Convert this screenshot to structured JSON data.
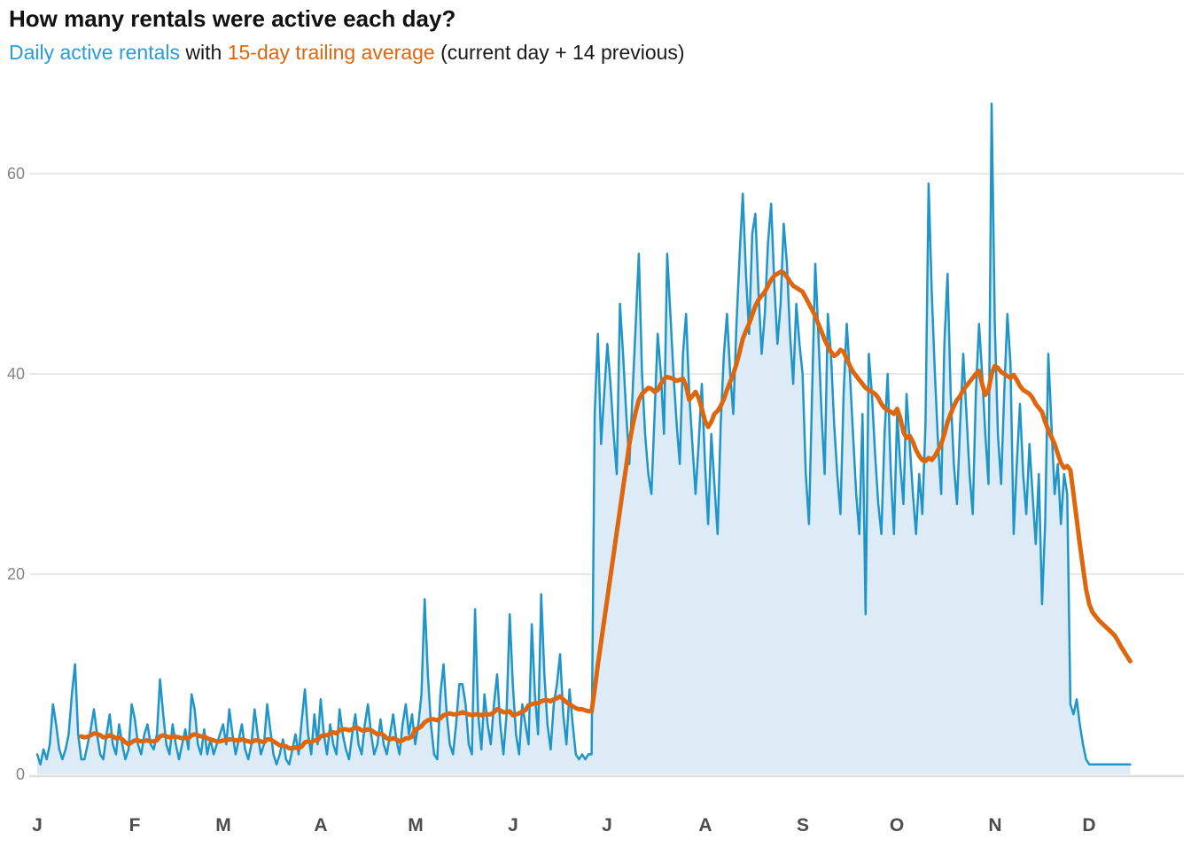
{
  "header": {
    "title": "How many rentals were active each day?",
    "subtitle_part1": "Daily active rentals",
    "subtitle_part2": " with ",
    "subtitle_part3": "15-day trailing average",
    "subtitle_part4": " (current day + 14 previous)"
  },
  "colors": {
    "daily_blue": "#1f95c8",
    "subtitle_blue": "#2b9bd7",
    "area_fill": "#dcebf6",
    "avg_orange": "#dd660e",
    "grid": "#e9e9e9",
    "baseline": "#dedede",
    "y_label": "#848484",
    "x_label": "#4d4d4d",
    "title_text": "#111111",
    "body_text": "#1a1a1a"
  },
  "chart_data": {
    "type": "line",
    "title": "How many rentals were active each day?",
    "xlabel": "",
    "ylabel": "",
    "x_unit": "day of year (Jan 1 = day 0, data ends mid-December)",
    "ylim": [
      0,
      70
    ],
    "yticks": [
      0,
      20,
      40,
      60
    ],
    "grid": "horizontal",
    "legend_position": "in subtitle (colored text)",
    "x_tick_labels": [
      "J",
      "F",
      "M",
      "A",
      "M",
      "J",
      "J",
      "A",
      "S",
      "O",
      "N",
      "D"
    ],
    "month_start_day_index": [
      0,
      31,
      59,
      90,
      120,
      151,
      181,
      212,
      243,
      273,
      304,
      334
    ],
    "series": [
      {
        "name": "Daily active rentals",
        "style": "line with area fill",
        "start_day_index": 0,
        "values": [
          2,
          1,
          2.5,
          1.5,
          3,
          7,
          5,
          2.5,
          1.5,
          2.5,
          4,
          8,
          11,
          4,
          1.5,
          1.5,
          3,
          4.5,
          6.5,
          4,
          2,
          1.5,
          4,
          6,
          3,
          2,
          5,
          3,
          1.5,
          2.5,
          7,
          5.5,
          3,
          2,
          4,
          5,
          3,
          2.5,
          4,
          9.5,
          6,
          3,
          2,
          5,
          3,
          1.5,
          3,
          4.5,
          2.5,
          8,
          6.5,
          3,
          2,
          4.5,
          2,
          3.5,
          2,
          3,
          4,
          5,
          3,
          6.5,
          4,
          2,
          3.5,
          5,
          2.5,
          1.5,
          3,
          6.5,
          4,
          2,
          3,
          7,
          4.5,
          2,
          1,
          2,
          3.5,
          1.5,
          1,
          2.5,
          4,
          2,
          5.5,
          8.5,
          4,
          2,
          6,
          3,
          7.5,
          4,
          2,
          5,
          3,
          2,
          6.5,
          4,
          2.5,
          1.5,
          4,
          6,
          3,
          2,
          5,
          7,
          4,
          2,
          3,
          5.5,
          3,
          2,
          4,
          6,
          3.5,
          2,
          5,
          7,
          4,
          6,
          3,
          5,
          8,
          17.5,
          10,
          5,
          2,
          1.5,
          8,
          11,
          6,
          3,
          2,
          5,
          9,
          9,
          7,
          3,
          2,
          16.5,
          6,
          2.5,
          8,
          5,
          3,
          7,
          10,
          5,
          2,
          6,
          16,
          9,
          4,
          2,
          7,
          5,
          3,
          15,
          8,
          4,
          18,
          10,
          5,
          2.5,
          7,
          9,
          12,
          6,
          3,
          8.5,
          5,
          2,
          1.5,
          2,
          1.5,
          2,
          2,
          36,
          44,
          33,
          38,
          43,
          39,
          34,
          30,
          47,
          42,
          36,
          31,
          38,
          45,
          52,
          40,
          34,
          30,
          28,
          36,
          44,
          40,
          34,
          52,
          46,
          40,
          35,
          31,
          42,
          46,
          38,
          33,
          28,
          33,
          39,
          31,
          25,
          34,
          29,
          24,
          35,
          42,
          46,
          40,
          36,
          45,
          52,
          58,
          50,
          44,
          54,
          56,
          48,
          42,
          46,
          53,
          57,
          49,
          43,
          47,
          55,
          51,
          44,
          39,
          47,
          43,
          40,
          30,
          25,
          38,
          51,
          44,
          36,
          30,
          46,
          42,
          35,
          30,
          26,
          38,
          45,
          40,
          34,
          28,
          24,
          36,
          16,
          42,
          38,
          32,
          27,
          24,
          34,
          40,
          30,
          24,
          36,
          31,
          27,
          38,
          33,
          28,
          24,
          30,
          26,
          35,
          59,
          48,
          40,
          33,
          28,
          43,
          50,
          38,
          31,
          27,
          35,
          42,
          36,
          30,
          26,
          38,
          45,
          40,
          34,
          29,
          67,
          45,
          34,
          29,
          38,
          46,
          41,
          24,
          31,
          37,
          30,
          26,
          33,
          28,
          23,
          30,
          17,
          25,
          42,
          35,
          28,
          31,
          25,
          30,
          28,
          7,
          6,
          7.5,
          5,
          3,
          1.5,
          1,
          1,
          1,
          1,
          1,
          1,
          1,
          1,
          1,
          1,
          1,
          1,
          1,
          1
        ]
      },
      {
        "name": "15-day trailing average",
        "style": "thick line",
        "start_day_index": 14,
        "values": [
          3.8,
          3.7,
          3.75,
          3.9,
          4.1,
          4.05,
          3.9,
          3.7,
          3.75,
          3.9,
          3.8,
          3.6,
          3.7,
          3.5,
          3.2,
          3.0,
          3.2,
          3.4,
          3.4,
          3.3,
          3.35,
          3.4,
          3.3,
          3.3,
          3.4,
          3.8,
          3.9,
          3.8,
          3.7,
          3.8,
          3.75,
          3.7,
          3.6,
          3.65,
          3.6,
          3.9,
          4.0,
          3.9,
          3.8,
          3.8,
          3.6,
          3.5,
          3.4,
          3.3,
          3.3,
          3.4,
          3.4,
          3.5,
          3.5,
          3.4,
          3.4,
          3.5,
          3.4,
          3.3,
          3.2,
          3.4,
          3.4,
          3.3,
          3.2,
          3.5,
          3.5,
          3.3,
          3.1,
          2.9,
          2.9,
          2.8,
          2.6,
          2.6,
          2.7,
          2.6,
          2.8,
          3.2,
          3.3,
          3.2,
          3.4,
          3.4,
          3.8,
          3.9,
          3.9,
          4.1,
          4.2,
          4.1,
          4.4,
          4.5,
          4.5,
          4.4,
          4.5,
          4.7,
          4.6,
          4.4,
          4.4,
          4.5,
          4.4,
          4.2,
          4.0,
          4.1,
          3.9,
          3.6,
          3.5,
          3.6,
          3.5,
          3.3,
          3.4,
          3.6,
          3.6,
          3.8,
          4.5,
          4.6,
          4.8,
          5.2,
          5.4,
          5.5,
          5.5,
          5.4,
          5.6,
          5.9,
          6.0,
          6.1,
          6.0,
          6.0,
          6.1,
          6.2,
          6.1,
          6.0,
          5.9,
          6.0,
          6.0,
          5.9,
          6.0,
          6.0,
          6.0,
          6.2,
          6.5,
          6.4,
          6.2,
          6.2,
          6.3,
          5.9,
          6.0,
          6.1,
          6.3,
          6.4,
          6.9,
          7.0,
          7.1,
          7.1,
          7.3,
          7.4,
          7.4,
          7.3,
          7.5,
          7.6,
          7.8,
          7.5,
          7.2,
          7.0,
          6.8,
          6.6,
          6.5,
          6.5,
          6.4,
          6.3,
          6.3,
          8.5,
          11,
          13.2,
          15.4,
          17.6,
          19.8,
          22,
          24.2,
          26.4,
          28.6,
          30.8,
          33,
          34.8,
          36.2,
          37.4,
          38.0,
          38.3,
          38.6,
          38.5,
          38.2,
          38.4,
          39.0,
          39.5,
          39.7,
          39.6,
          39.5,
          39.3,
          39.4,
          39.5,
          38.8,
          37.4,
          37.8,
          38.2,
          37.6,
          36.5,
          35.3,
          34.7,
          35.2,
          36.0,
          36.3,
          36.8,
          37.5,
          38.4,
          39.2,
          40.0,
          41.0,
          42.2,
          43.5,
          44.3,
          45.0,
          45.9,
          46.8,
          47.4,
          47.8,
          48.2,
          48.8,
          49.4,
          49.8,
          50.0,
          50.2,
          50.1,
          49.7,
          49.2,
          48.8,
          48.6,
          48.4,
          48.2,
          47.6,
          47.0,
          46.4,
          45.8,
          45.0,
          44.2,
          43.4,
          42.8,
          42.2,
          41.8,
          42.0,
          42.4,
          42.2,
          41.5,
          40.8,
          40.2,
          39.8,
          39.4,
          39.0,
          38.6,
          38.4,
          38.2,
          38.0,
          37.6,
          37.0,
          36.6,
          36.4,
          36.2,
          36.0,
          36.5,
          35.6,
          34.2,
          33.6,
          33.8,
          33.2,
          32.4,
          31.8,
          31.4,
          31.3,
          31.6,
          31.4,
          31.8,
          32.4,
          33.0,
          34.0,
          35.2,
          36.0,
          36.8,
          37.4,
          37.8,
          38.4,
          38.8,
          39.2,
          39.6,
          40.0,
          40.3,
          39.0,
          37.9,
          38.4,
          40.0,
          40.8,
          40.6,
          40.2,
          40.0,
          39.8,
          39.6,
          39.9,
          39.4,
          38.8,
          38.4,
          38.2,
          38.0,
          37.6,
          37.0,
          36.6,
          36.2,
          35.2,
          34.4,
          33.7,
          33.0,
          32.0,
          31.1,
          30.6,
          30.8,
          30.4,
          28.0,
          25.5,
          23.0,
          20.7,
          18.5,
          17.0,
          16.2,
          15.8,
          15.4,
          15.1,
          14.8,
          14.5,
          14.2,
          13.9,
          13.4,
          12.8,
          12.3,
          11.8,
          11.3
        ]
      }
    ]
  },
  "axes": {
    "y_tick_labels": [
      "0",
      "20",
      "40",
      "60"
    ],
    "x_month_labels": [
      "J",
      "F",
      "M",
      "A",
      "M",
      "J",
      "J",
      "A",
      "S",
      "O",
      "N",
      "D"
    ]
  }
}
